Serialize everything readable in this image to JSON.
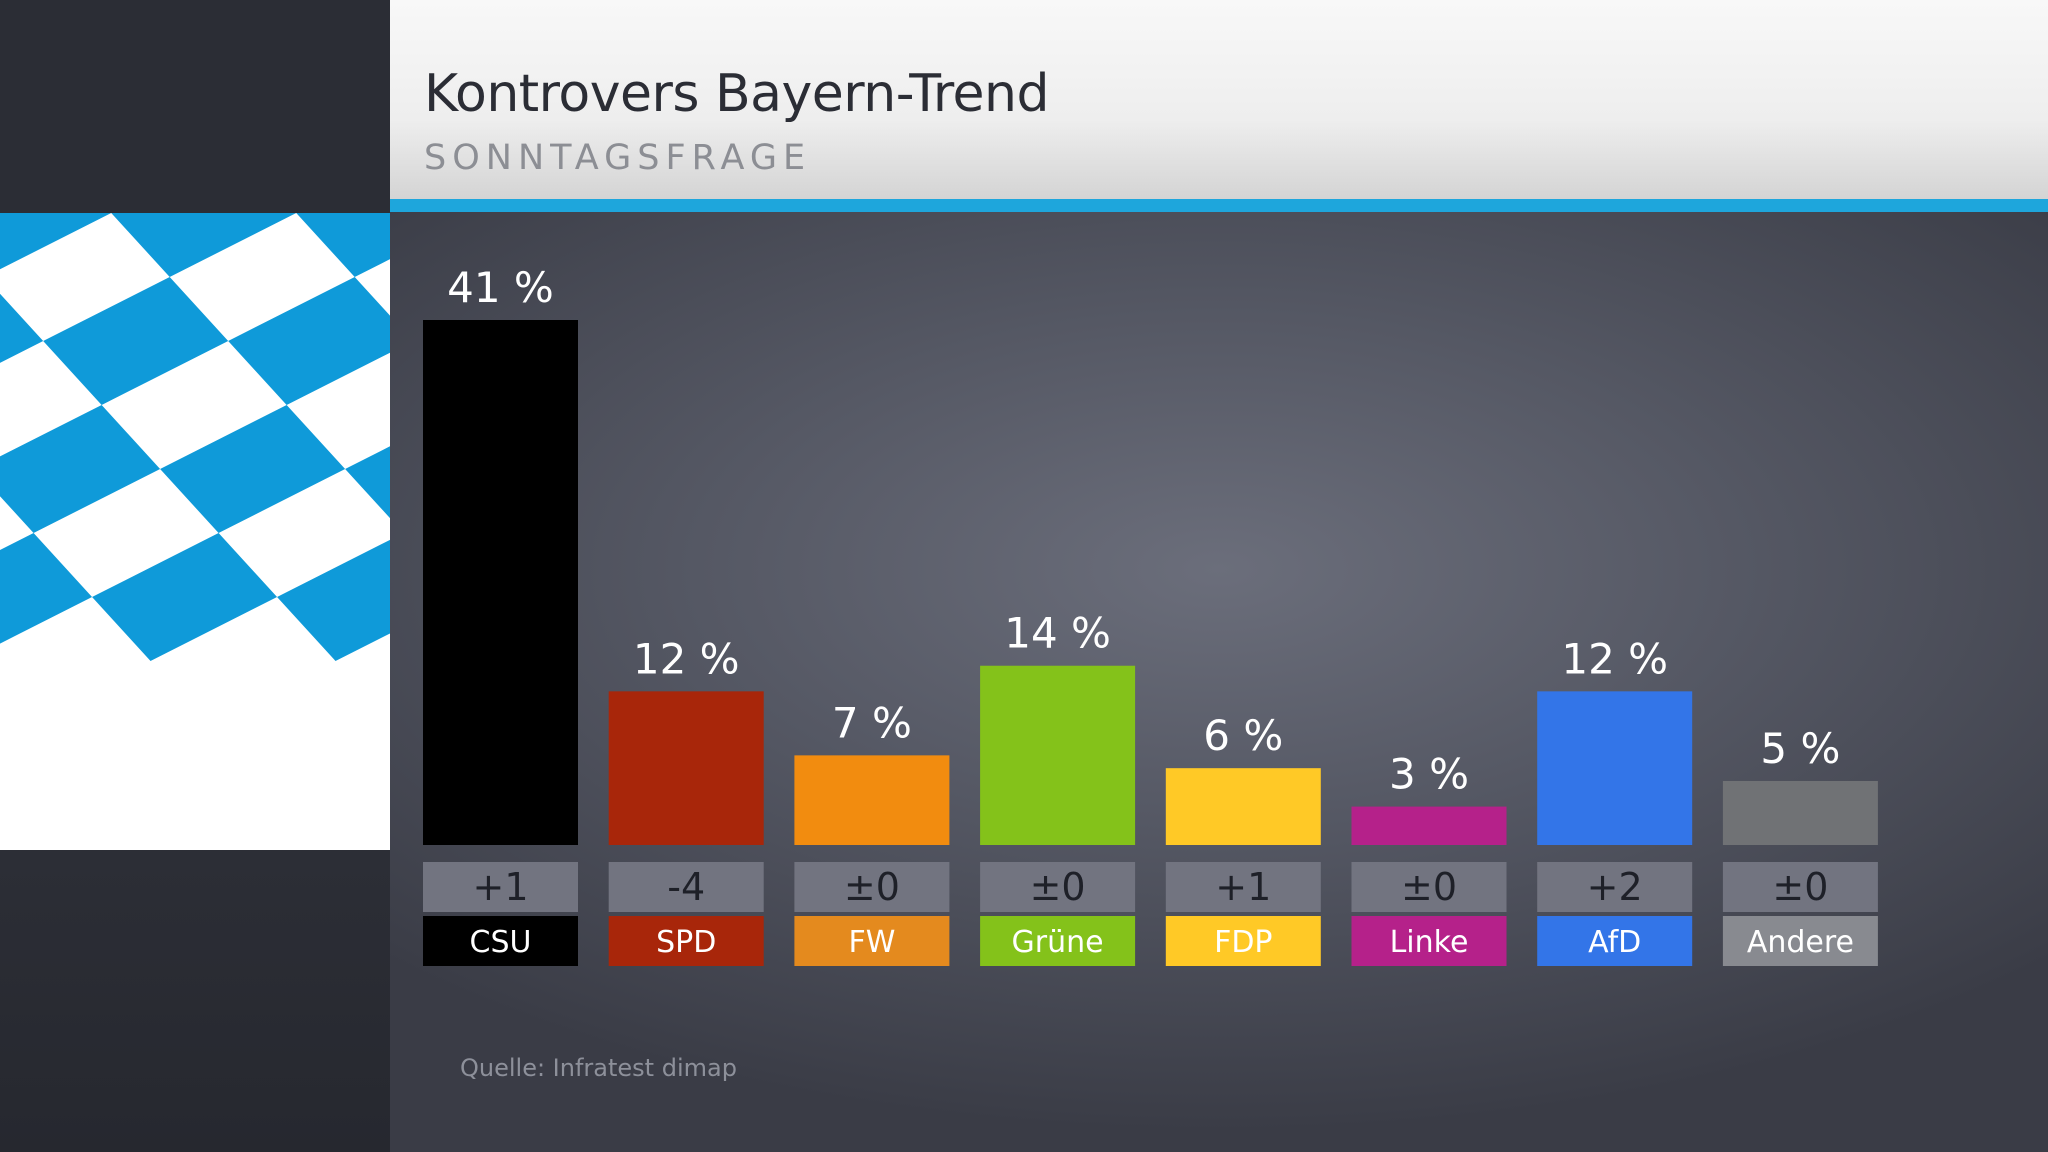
{
  "header": {
    "title": "Kontrovers Bayern-Trend",
    "subtitle": "SONNTAGSFRAGE"
  },
  "source": "Quelle: Infratest dimap",
  "colors": {
    "accent": "#1ea6dc",
    "flag_blue": "#0f9ad9",
    "change_box": "#727480"
  },
  "chart_data": {
    "type": "bar",
    "categories": [
      "CSU",
      "SPD",
      "FW",
      "Grüne",
      "FDP",
      "Linke",
      "AfD",
      "Andere"
    ],
    "values": [
      41,
      12,
      7,
      14,
      6,
      3,
      12,
      5
    ],
    "value_labels": [
      "41 %",
      "12 %",
      "7 %",
      "14 %",
      "6 %",
      "3 %",
      "12 %",
      "5 %"
    ],
    "changes": [
      "+1",
      "-4",
      "±0",
      "±0",
      "+1",
      "±0",
      "+2",
      "±0"
    ],
    "bar_colors": [
      "#000000",
      "#a8260a",
      "#f28c0f",
      "#84c21a",
      "#ffc926",
      "#b5218a",
      "#3375e8",
      "#707275"
    ],
    "label_colors": [
      "#000000",
      "#a8260a",
      "#e48a1e",
      "#84c21a",
      "#ffc926",
      "#b5218a",
      "#3375e8",
      "#888a90"
    ],
    "ylim": [
      0,
      41
    ],
    "unit": "%",
    "grid": false,
    "legend": "none"
  }
}
